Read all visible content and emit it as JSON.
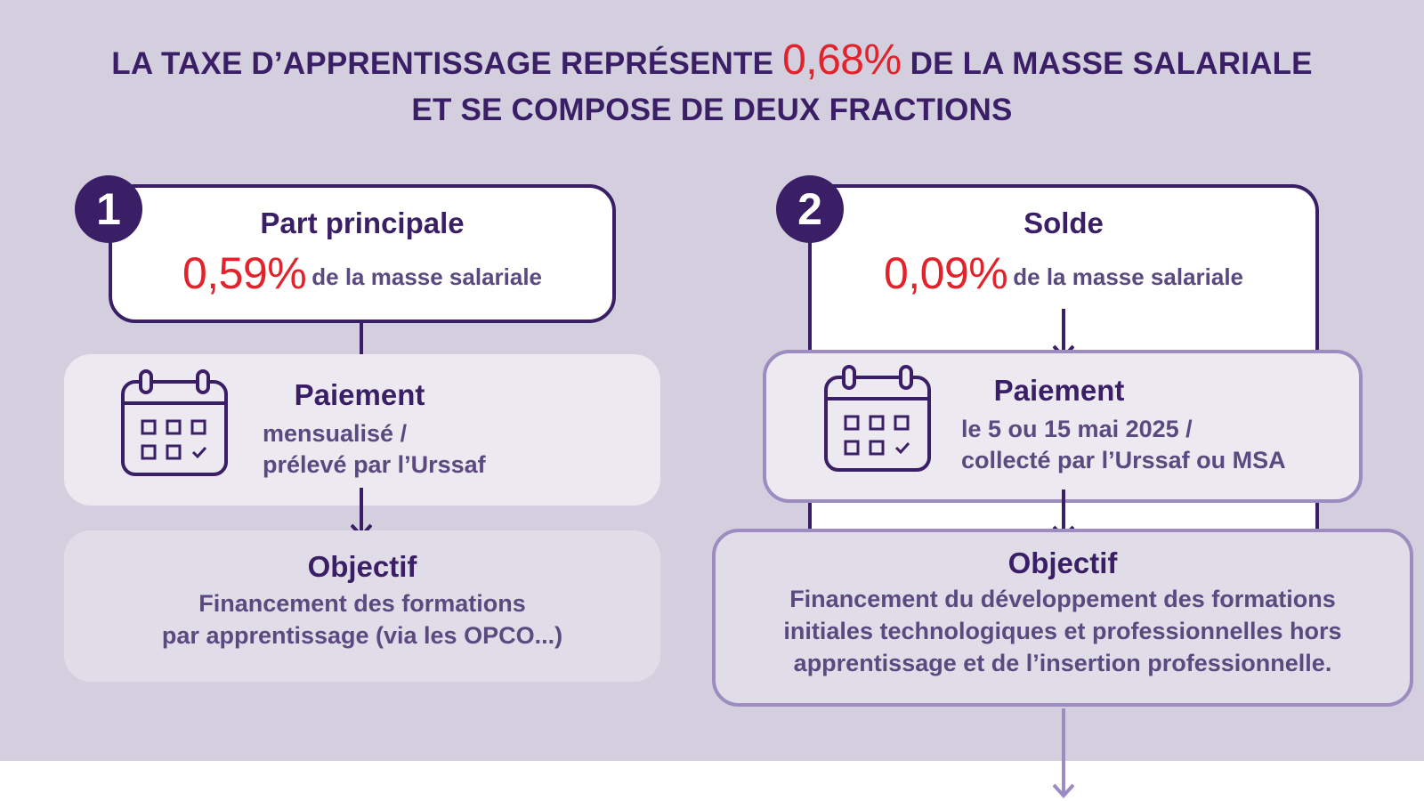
{
  "header": {
    "title_part1": "LA TAXE D’APPRENTISSAGE REPRÉSENTE",
    "title_percent": "0,68%",
    "title_part2": "DE LA MASSE SALARIALE",
    "title_line2": "ET SE COMPOSE DE DEUX FRACTIONS"
  },
  "fractions": [
    {
      "number": "1",
      "name": "Part principale",
      "percent": "0,59%",
      "percent_label": "de la masse salariale",
      "payment_title": "Paiement",
      "payment_line1": "mensualisé /",
      "payment_line2": "prélevé par l’Urssaf",
      "payment_icon": "calendar-icon",
      "objective_title": "Objectif",
      "objective_line1": "Financement des formations",
      "objective_line2": "par apprentissage (via les OPCO...)"
    },
    {
      "number": "2",
      "name": "Solde",
      "percent": "0,09%",
      "percent_label": "de la masse salariale",
      "payment_title": "Paiement",
      "payment_line1": "le 5 ou 15 mai 2025 /",
      "payment_line2": "collecté par l’Urssaf ou MSA",
      "payment_icon": "calendar-icon",
      "objective_title": "Objectif",
      "objective_line1": "Financement du développement des formations",
      "objective_line2": "initiales technologiques et professionnelles hors",
      "objective_line3": "apprentissage et de l’insertion professionnelle."
    }
  ],
  "colors": {
    "background": "#d3cfde",
    "primary": "#3a1e66",
    "accent_red": "#e2232b",
    "text_muted": "#5a4a80",
    "outline": "#9c8cc0"
  }
}
